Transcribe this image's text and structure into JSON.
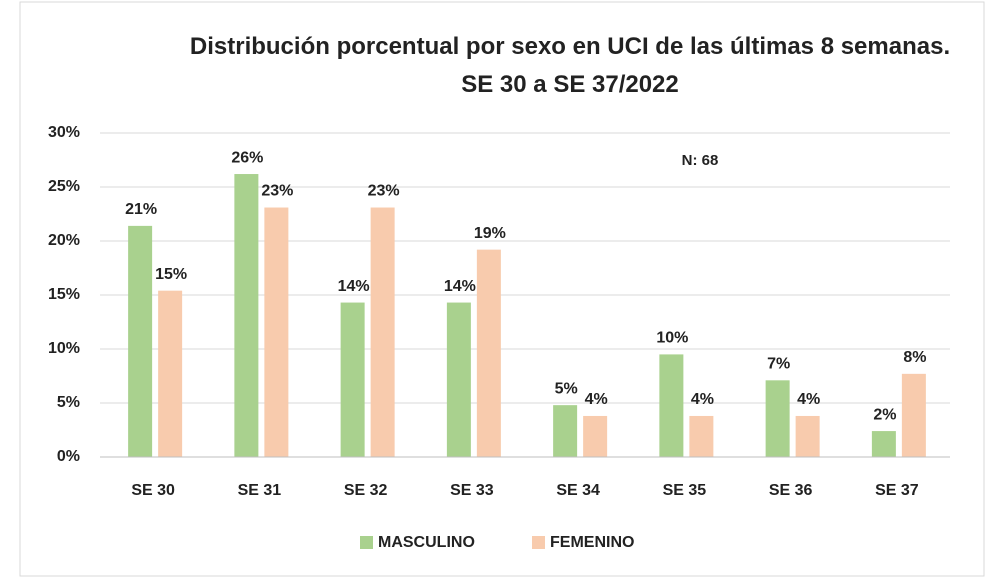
{
  "chart_data": {
    "type": "bar",
    "title": "Distribución porcentual por sexo en UCI de las últimas 8 semanas. SE 30 a SE 37/2022",
    "annotation": "N: 68",
    "categories": [
      "SE 30",
      "SE 31",
      "SE 32",
      "SE 33",
      "SE 34",
      "SE 35",
      "SE 36",
      "SE 37"
    ],
    "series": [
      {
        "name": "MASCULINO",
        "color": "#a9d18e",
        "values": [
          21.4,
          26.2,
          14.3,
          14.3,
          4.8,
          9.5,
          7.1,
          2.4
        ],
        "value_labels": [
          "21%",
          "26%",
          "14%",
          "14%",
          "5%",
          "10%",
          "7%",
          "2%"
        ]
      },
      {
        "name": "FEMENINO",
        "color": "#f8cbad",
        "values": [
          15.4,
          23.1,
          23.1,
          19.2,
          3.8,
          3.8,
          3.8,
          7.7
        ],
        "value_labels": [
          "15%",
          "23%",
          "23%",
          "19%",
          "4%",
          "4%",
          "4%",
          "8%"
        ]
      }
    ],
    "ylim": [
      0,
      30
    ],
    "yticks": [
      {
        "value": 0,
        "label": "0%"
      },
      {
        "value": 5,
        "label": "5%"
      },
      {
        "value": 10,
        "label": "10%"
      },
      {
        "value": 15,
        "label": "15%"
      },
      {
        "value": 20,
        "label": "20%"
      },
      {
        "value": 25,
        "label": "25%"
      },
      {
        "value": 30,
        "label": "30%"
      }
    ],
    "grid": true,
    "legend": "bottom"
  }
}
